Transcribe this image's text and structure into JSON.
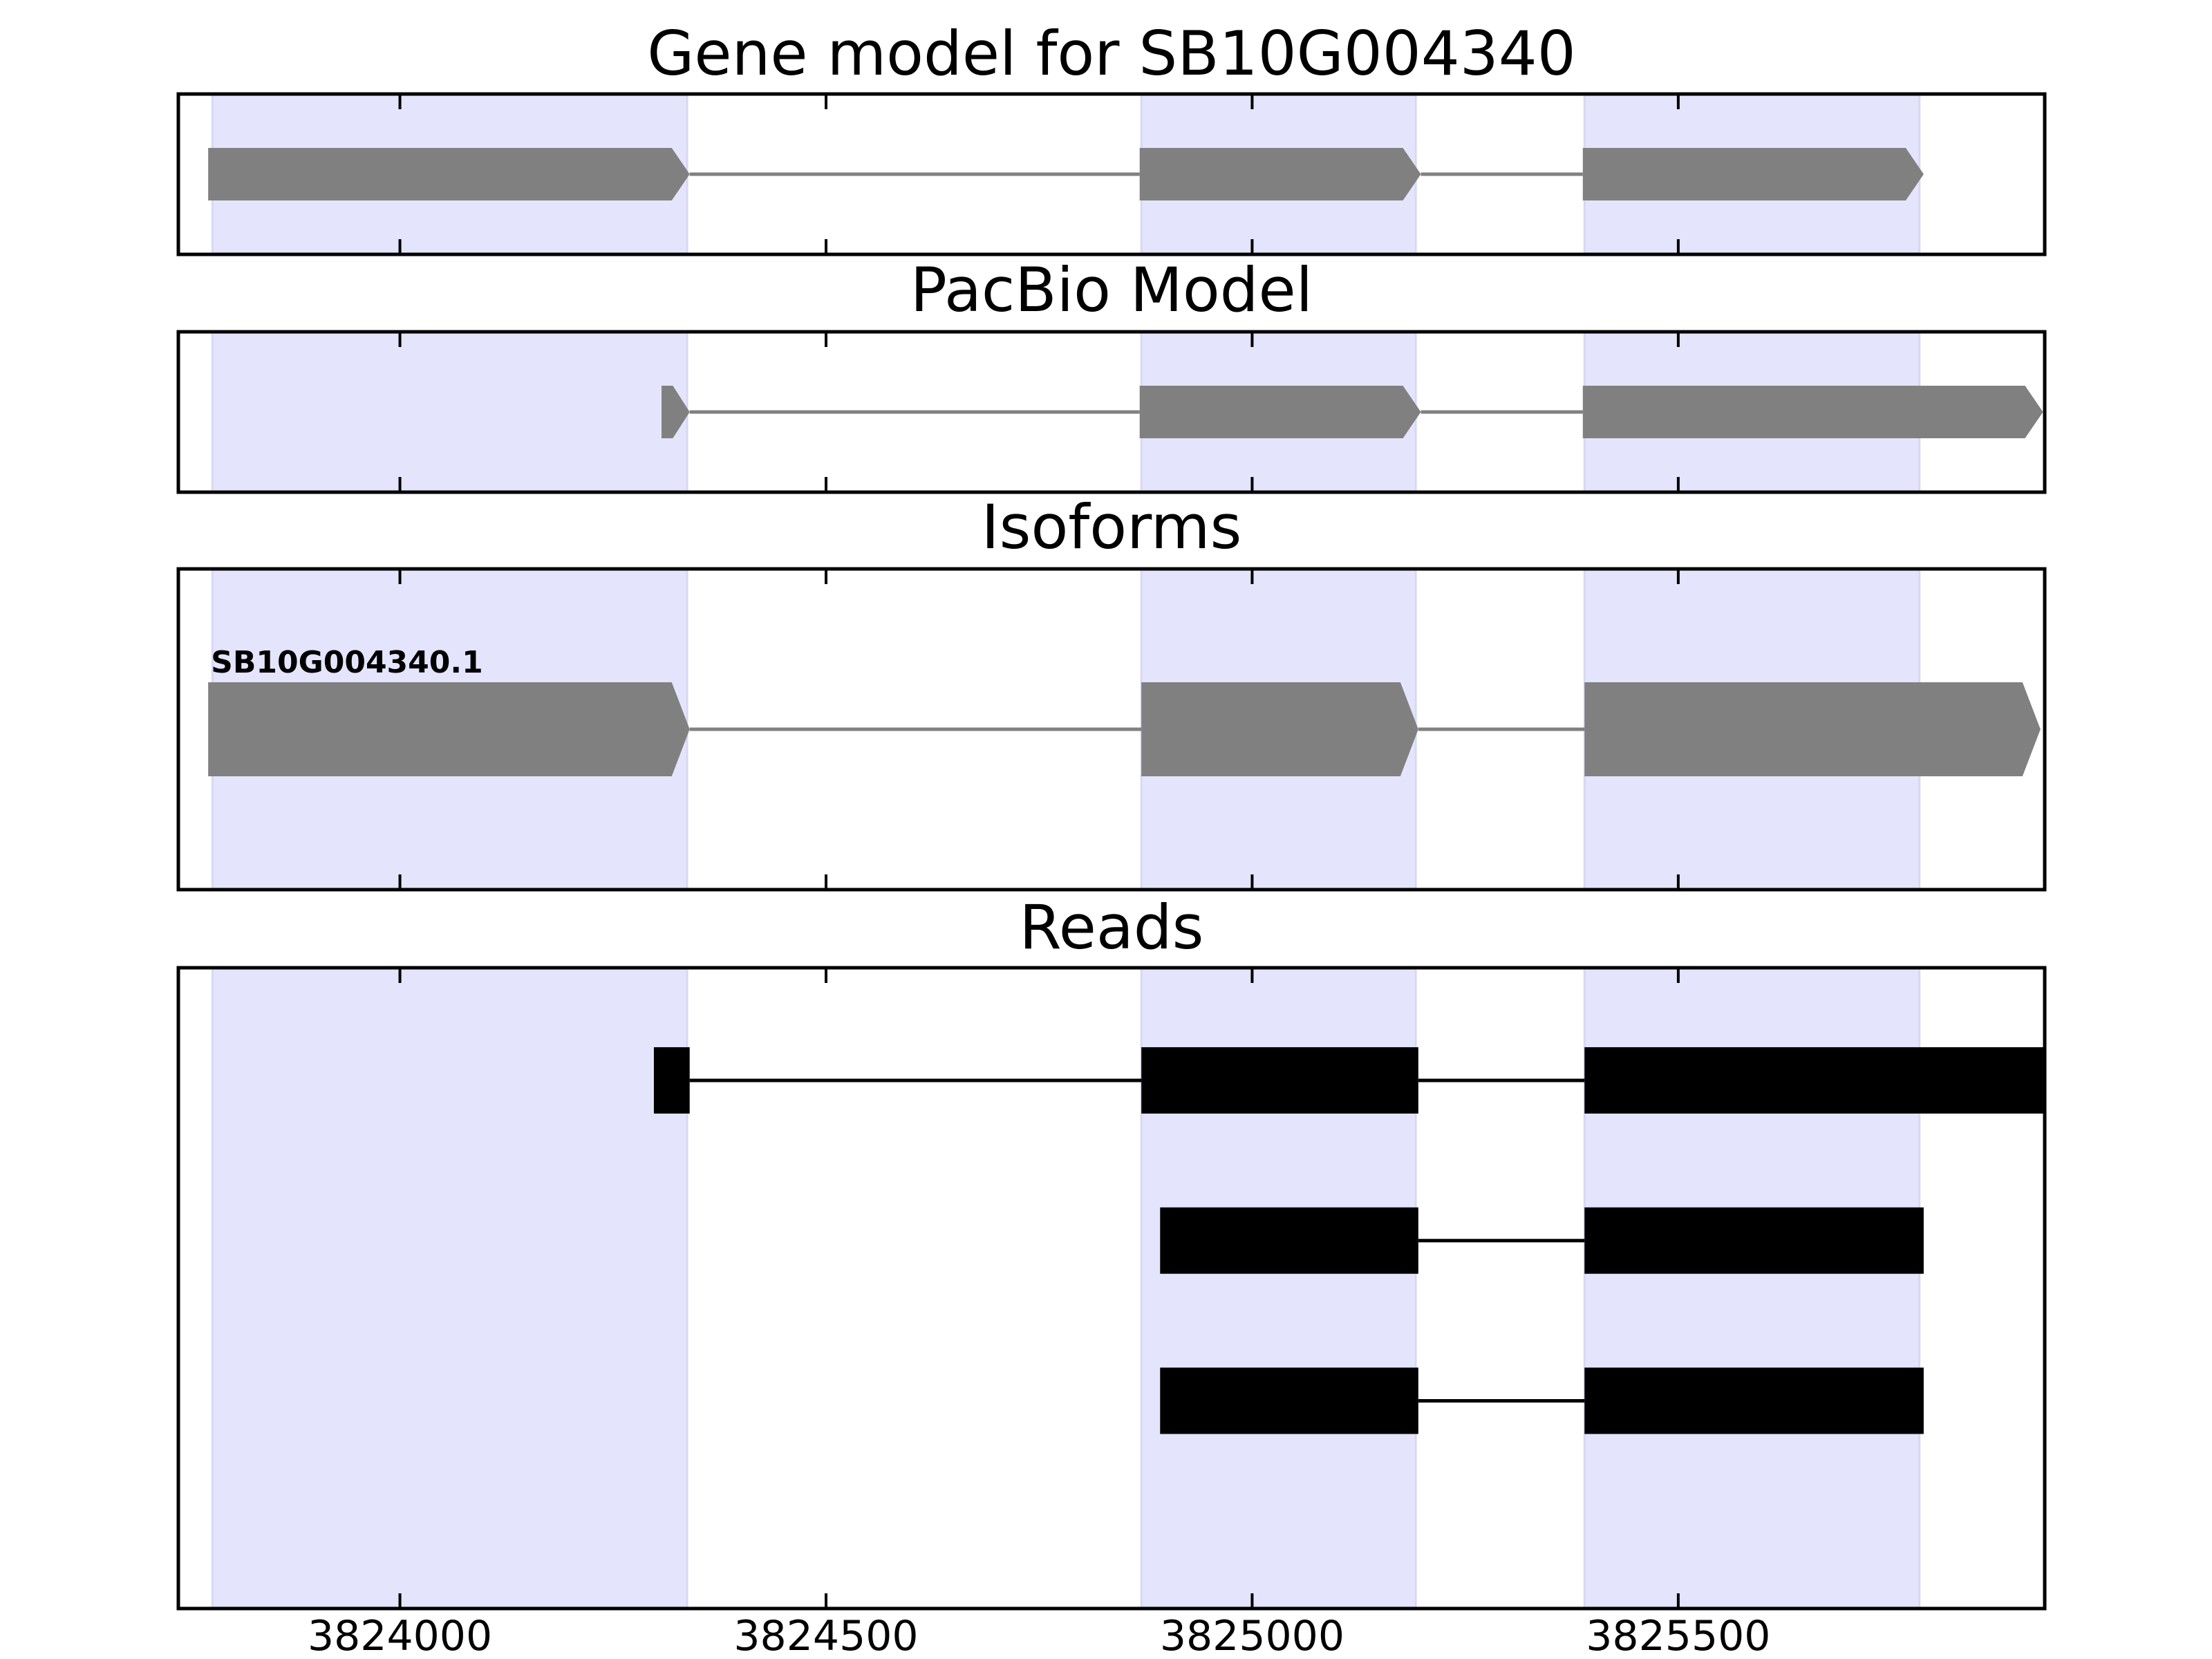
{
  "colors": {
    "exon_band": "#e4e4fc",
    "exon_band_edge": "#d8d8f4",
    "model_feature": "#808080",
    "read_feature": "#000000",
    "frame": "#000000",
    "background": "#ffffff"
  },
  "chart_data": {
    "type": "gene-track",
    "x_axis": {
      "range": [
        3823740,
        3825930
      ],
      "ticks": [
        3824000,
        3824500,
        3825000,
        3825500
      ],
      "tick_labels": [
        "3824000",
        "3824500",
        "3825000",
        "3825500"
      ]
    },
    "exon_bands": [
      [
        3823780,
        3824337
      ],
      [
        3824870,
        3825192
      ],
      [
        3825390,
        3825783
      ]
    ],
    "panels": [
      {
        "id": "gene-model",
        "title": "Gene model for SB10G004340",
        "style": "model",
        "features": [
          {
            "exons": [
              [
                3823775,
                3824340
              ],
              [
                3824868,
                3825198
              ],
              [
                3825388,
                3825788
              ]
            ]
          }
        ]
      },
      {
        "id": "pacbio-model",
        "title": "PacBio Model",
        "style": "model",
        "features": [
          {
            "exons": [
              [
                3824307,
                3824340
              ],
              [
                3824868,
                3825198
              ],
              [
                3825388,
                3825928
              ]
            ]
          }
        ]
      },
      {
        "id": "isoforms",
        "title": "Isoforms",
        "style": "model",
        "features": [
          {
            "label": "SB10G004340.1",
            "exons": [
              [
                3823775,
                3824340
              ],
              [
                3824870,
                3825195
              ],
              [
                3825390,
                3825925
              ]
            ]
          }
        ]
      },
      {
        "id": "reads",
        "title": "Reads",
        "style": "read",
        "features": [
          {
            "exons": [
              [
                3824298,
                3824340
              ],
              [
                3824870,
                3825195
              ],
              [
                3825390,
                3825928
              ]
            ]
          },
          {
            "exons": [
              [
                3824892,
                3825195
              ],
              [
                3825390,
                3825788
              ]
            ]
          },
          {
            "exons": [
              [
                3824892,
                3825195
              ],
              [
                3825390,
                3825788
              ]
            ]
          }
        ]
      }
    ]
  }
}
